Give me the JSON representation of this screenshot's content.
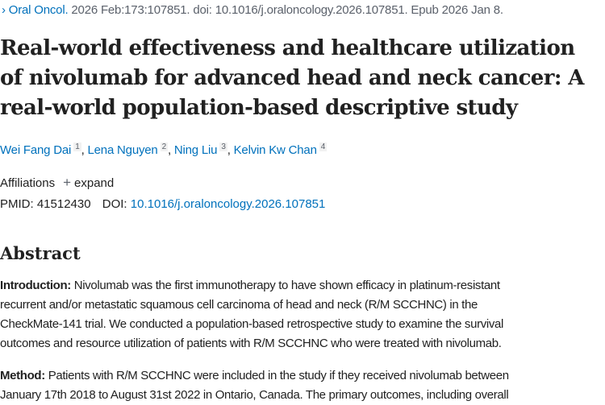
{
  "citation": {
    "chevron_icon": "chevron-right",
    "journal": "Oral Oncol.",
    "details": " 2026 Feb:173:107851. doi: 10.1016/j.oraloncology.2026.107851. Epub 2026 Jan 8."
  },
  "title_lines": [
    "Real-world effectiveness and healthcare utilization",
    "of nivolumab for advanced head and neck cancer: A",
    "real-world population-based descriptive study"
  ],
  "authors": [
    {
      "name": "Wei Fang Dai",
      "aff": "1"
    },
    {
      "name": "Lena Nguyen",
      "aff": "2"
    },
    {
      "name": "Ning Liu",
      "aff": "3"
    },
    {
      "name": "Kelvin Kw Chan",
      "aff": "4"
    }
  ],
  "affiliations": {
    "label": "Affiliations",
    "expand": "expand"
  },
  "ids": {
    "pmid_label": "PMID:",
    "pmid": "41512430",
    "doi_label": "DOI:",
    "doi": "10.1016/j.oraloncology.2026.107851"
  },
  "abstract": {
    "heading": "Abstract",
    "introduction": {
      "label": "Introduction:",
      "lines": [
        " Nivolumab was the first immunotherapy to have shown efficacy in platinum-resistant",
        "recurrent and/or metastatic squamous cell carcinoma of head and neck (R/M SCCHNC) in the",
        "CheckMate-141 trial. We conducted a population-based retrospective study to examine the survival",
        "outcomes and resource utilization of patients with R/M SCCHNC who were treated with nivolumab."
      ]
    },
    "method": {
      "label": "Method:",
      "lines": [
        " Patients with R/M SCCHNC were included in the study if they received nivolumab between",
        "January 17th 2018 to August 31st 2022 in Ontario, Canada. The primary outcomes, including overall"
      ]
    }
  },
  "colors": {
    "link": "#0071bc",
    "text": "#212121",
    "muted": "#5b616b"
  }
}
